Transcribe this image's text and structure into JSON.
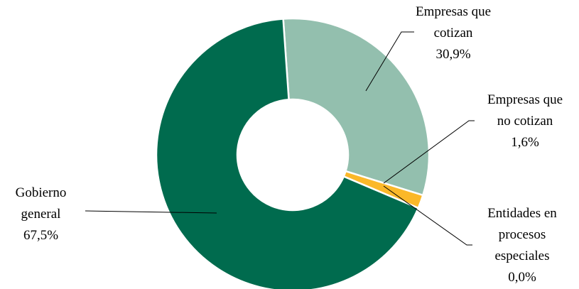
{
  "chart_data": {
    "type": "pie",
    "variant": "donut",
    "title": "",
    "grid": false,
    "legend": "none",
    "start_angle_deg": -4,
    "slices": [
      {
        "label_lines": [
          "Empresas que",
          "cotizan"
        ],
        "value_label": "30,9%",
        "value": 30.9,
        "color": "#93bfae"
      },
      {
        "label_lines": [
          "Empresas que",
          "no cotizan"
        ],
        "value_label": "1,6%",
        "value": 1.6,
        "color": "#fbb829"
      },
      {
        "label_lines": [
          "Entidades en",
          "procesos",
          "especiales"
        ],
        "value_label": "0,0%",
        "value": 0.0,
        "color": "#006b4e"
      },
      {
        "label_lines": [
          "Gobierno",
          "general"
        ],
        "value_label": "67,5%",
        "value": 67.5,
        "color": "#006b4e"
      }
    ]
  }
}
